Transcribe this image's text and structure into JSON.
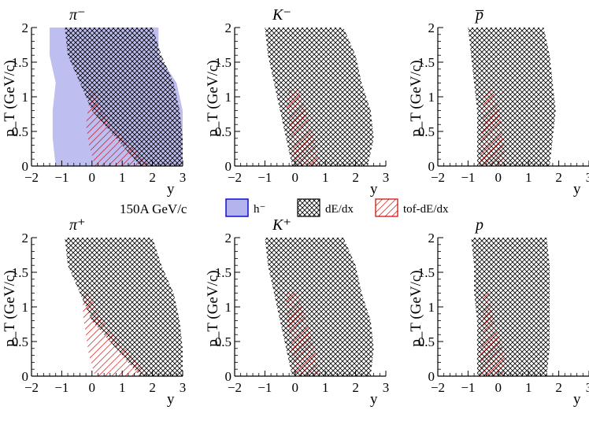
{
  "figure": {
    "energy_label": "150A GeV/c",
    "legend": {
      "items": [
        {
          "key": "h-",
          "label": "h⁻",
          "fill": "#b3b3ee",
          "stroke": "#0000cc",
          "pattern": "solid"
        },
        {
          "key": "dedx",
          "label": "dE/dx",
          "fill": "none",
          "stroke": "#000000",
          "pattern": "crosshatch"
        },
        {
          "key": "tof",
          "label": "tof-dE/dx",
          "fill": "none",
          "stroke": "#cc0000",
          "pattern": "diagonal"
        }
      ]
    }
  },
  "colors": {
    "h_minus_fill": "#b3b3ee",
    "h_minus_border": "#0000cc",
    "dedx_hatch": "#000000",
    "tof_hatch": "#cc0000",
    "axis": "#000000"
  },
  "chart_data": [
    {
      "type": "area",
      "particle": "π⁻",
      "xlabel": "y",
      "ylabel": "p_T (GeV/c)",
      "xlim": [
        -2,
        3
      ],
      "ylim": [
        0,
        2
      ],
      "xticks": [
        "−2",
        "−1",
        "0",
        "1",
        "2",
        "3"
      ],
      "yticks": [
        "0",
        "0.5",
        "1",
        "1.5",
        "2"
      ],
      "regions": [
        {
          "series": "h-",
          "pT": [
            0.0,
            0.4,
            0.8,
            1.2,
            1.6,
            2.0
          ],
          "y_min": [
            -1.2,
            -1.3,
            -1.3,
            -1.2,
            -1.4,
            -1.4
          ],
          "y_max": [
            3.0,
            3.0,
            3.0,
            2.8,
            2.2,
            2.2
          ]
        },
        {
          "series": "dedx",
          "pT": [
            0.0,
            0.4,
            0.8,
            1.2,
            1.6,
            2.0
          ],
          "y_min": [
            1.6,
            0.8,
            0.0,
            -0.4,
            -0.8,
            -0.9
          ],
          "y_max": [
            3.0,
            3.0,
            2.9,
            2.7,
            2.3,
            2.0
          ]
        },
        {
          "series": "tof",
          "pT": [
            0.0,
            0.3,
            0.6,
            0.9,
            1.1
          ],
          "y_min": [
            0.1,
            -0.1,
            -0.2,
            -0.1,
            -0.1
          ],
          "y_max": [
            1.9,
            1.3,
            0.6,
            0.2,
            0.1
          ]
        }
      ]
    },
    {
      "type": "area",
      "particle": "K⁻",
      "xlabel": "y",
      "ylabel": "p_T (GeV/c)",
      "xlim": [
        -2,
        3
      ],
      "ylim": [
        0,
        2
      ],
      "xticks": [
        "−2",
        "−1",
        "0",
        "1",
        "2",
        "3"
      ],
      "yticks": [
        "0",
        "0.5",
        "1",
        "1.5",
        "2"
      ],
      "regions": [
        {
          "series": "dedx",
          "pT": [
            0.0,
            0.4,
            0.8,
            1.2,
            1.6,
            2.0
          ],
          "y_min": [
            -0.1,
            -0.3,
            -0.5,
            -0.7,
            -0.9,
            -1.0
          ],
          "y_max": [
            2.4,
            2.6,
            2.5,
            2.2,
            2.0,
            1.6
          ]
        },
        {
          "series": "tof",
          "pT": [
            0.0,
            0.3,
            0.6,
            0.9,
            1.1
          ],
          "y_min": [
            0.0,
            -0.1,
            -0.2,
            -0.3,
            -0.2
          ],
          "y_max": [
            0.8,
            0.7,
            0.5,
            0.3,
            0.1
          ]
        }
      ]
    },
    {
      "type": "area",
      "particle": "p̅",
      "xlabel": "y",
      "ylabel": "p_T (GeV/c)",
      "xlim": [
        -2,
        3
      ],
      "ylim": [
        0,
        2
      ],
      "xticks": [
        "−2",
        "−1",
        "0",
        "1",
        "2",
        "3"
      ],
      "yticks": [
        "0",
        "0.5",
        "1",
        "1.5",
        "2"
      ],
      "regions": [
        {
          "series": "dedx",
          "pT": [
            0.0,
            0.4,
            0.8,
            1.2,
            1.6,
            2.0
          ],
          "y_min": [
            -0.7,
            -0.7,
            -0.7,
            -0.8,
            -0.9,
            -1.0
          ],
          "y_max": [
            1.7,
            1.8,
            1.9,
            1.8,
            1.7,
            1.5
          ]
        },
        {
          "series": "tof",
          "pT": [
            0.0,
            0.3,
            0.6,
            0.9,
            1.1
          ],
          "y_min": [
            -0.6,
            -0.6,
            -0.5,
            -0.5,
            -0.4
          ],
          "y_max": [
            0.2,
            0.2,
            0.1,
            0.0,
            -0.2
          ]
        }
      ]
    },
    {
      "type": "area",
      "particle": "π⁺",
      "xlabel": "y",
      "ylabel": "p_T (GeV/c)",
      "xlim": [
        -2,
        3
      ],
      "ylim": [
        0,
        2
      ],
      "xticks": [
        "−2",
        "−1",
        "0",
        "1",
        "2",
        "3"
      ],
      "yticks": [
        "0",
        "0.5",
        "1",
        "1.5",
        "2"
      ],
      "regions": [
        {
          "series": "dedx",
          "pT": [
            0.0,
            0.4,
            0.8,
            1.2,
            1.6,
            2.0
          ],
          "y_min": [
            1.6,
            0.8,
            0.0,
            -0.4,
            -0.8,
            -0.9
          ],
          "y_max": [
            3.0,
            3.0,
            2.9,
            2.7,
            2.3,
            2.0
          ]
        },
        {
          "series": "tof",
          "pT": [
            0.0,
            0.3,
            0.6,
            0.9,
            1.2
          ],
          "y_min": [
            0.1,
            -0.1,
            -0.2,
            -0.3,
            -0.3
          ],
          "y_max": [
            1.9,
            1.3,
            0.7,
            0.2,
            -0.1
          ]
        }
      ]
    },
    {
      "type": "area",
      "particle": "K⁺",
      "xlabel": "y",
      "ylabel": "p_T (GeV/c)",
      "xlim": [
        -2,
        3
      ],
      "ylim": [
        0,
        2
      ],
      "xticks": [
        "−2",
        "−1",
        "0",
        "1",
        "2",
        "3"
      ],
      "yticks": [
        "0",
        "0.5",
        "1",
        "1.5",
        "2"
      ],
      "regions": [
        {
          "series": "dedx",
          "pT": [
            0.0,
            0.4,
            0.8,
            1.2,
            1.6,
            2.0
          ],
          "y_min": [
            -0.1,
            -0.3,
            -0.5,
            -0.7,
            -0.9,
            -1.0
          ],
          "y_max": [
            2.5,
            2.6,
            2.5,
            2.2,
            2.0,
            1.6
          ]
        },
        {
          "series": "tof",
          "pT": [
            0.0,
            0.3,
            0.6,
            0.9,
            1.2
          ],
          "y_min": [
            0.0,
            -0.1,
            -0.2,
            -0.3,
            -0.3
          ],
          "y_max": [
            0.8,
            0.7,
            0.5,
            0.3,
            0.1
          ]
        }
      ]
    },
    {
      "type": "area",
      "particle": "p",
      "xlabel": "y",
      "ylabel": "p_T (GeV/c)",
      "xlim": [
        -2,
        3
      ],
      "ylim": [
        0,
        2
      ],
      "xticks": [
        "−2",
        "−1",
        "0",
        "1",
        "2",
        "3"
      ],
      "yticks": [
        "0",
        "0.5",
        "1",
        "1.5",
        "2"
      ],
      "regions": [
        {
          "series": "dedx",
          "pT": [
            0.0,
            0.4,
            0.8,
            1.2,
            1.6,
            2.0
          ],
          "y_min": [
            -0.7,
            -0.7,
            -0.7,
            -0.8,
            -0.8,
            -0.9
          ],
          "y_max": [
            1.6,
            1.7,
            1.7,
            1.7,
            1.7,
            1.6
          ]
        },
        {
          "series": "tof",
          "pT": [
            0.0,
            0.3,
            0.6,
            0.9,
            1.2
          ],
          "y_min": [
            -0.6,
            -0.6,
            -0.5,
            -0.5,
            -0.5
          ],
          "y_max": [
            0.2,
            0.2,
            0.0,
            -0.2,
            -0.3
          ]
        }
      ]
    }
  ]
}
